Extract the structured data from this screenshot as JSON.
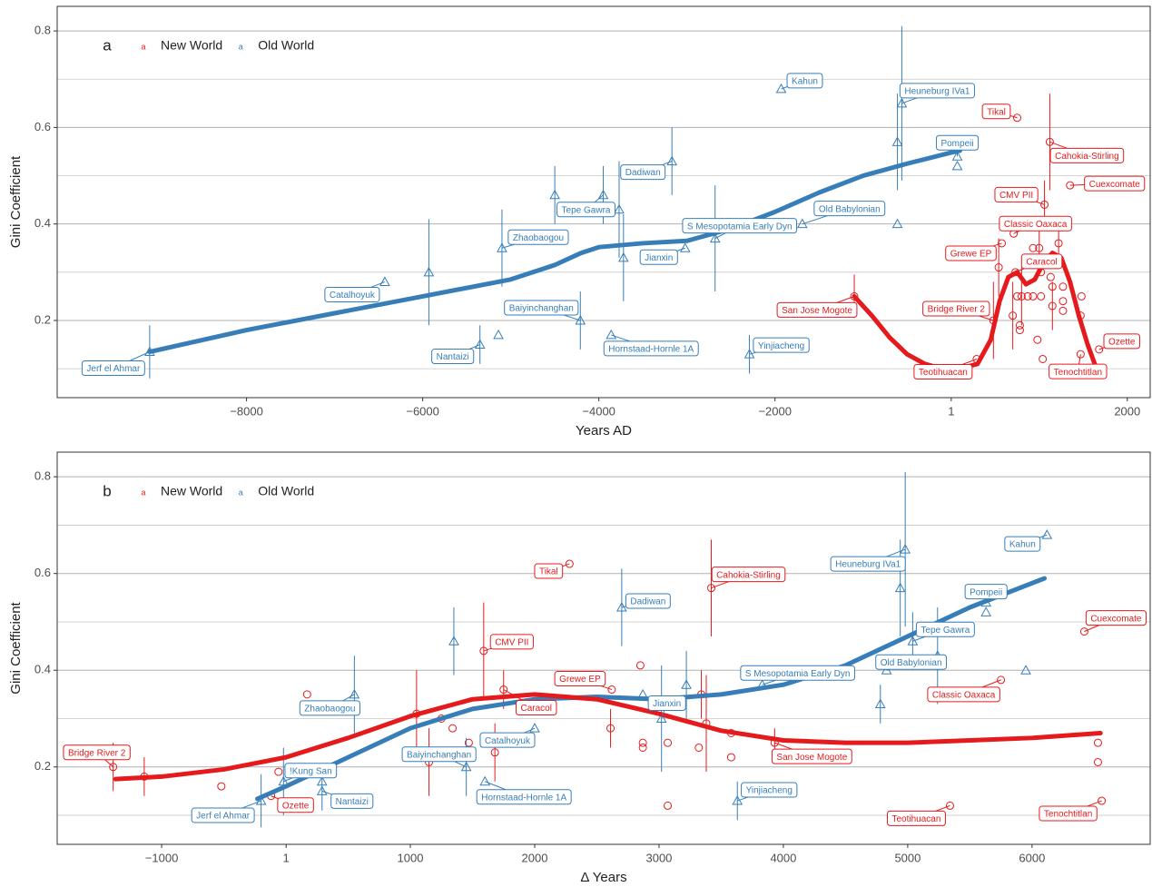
{
  "chart_data": [
    {
      "type": "scatter",
      "panel": "a",
      "legend_key": "a",
      "xlabel": "Years AD",
      "ylabel": "Gini Coefficient",
      "xlim": [
        -10150,
        2260
      ],
      "ylim": [
        0.04,
        0.851
      ],
      "xticks": [
        {
          "value": -8000,
          "label": "−8000"
        },
        {
          "value": -6000,
          "label": "−6000"
        },
        {
          "value": -4000,
          "label": "−4000"
        },
        {
          "value": -2000,
          "label": "−2000"
        },
        1,
        2000
      ],
      "yticks": [
        0.2,
        0.4,
        0.6,
        0.8
      ],
      "minor_yticks": [
        0.1,
        0.3,
        0.5,
        0.7
      ],
      "grid": true,
      "series": [
        {
          "name": "New World",
          "color": "#e41a1c",
          "marker": "circle",
          "x": [
            -1100,
            290,
            750,
            1120,
            1350,
            1060,
            710,
            575,
            730,
            480,
            1680,
            1470,
            540,
            700,
            750,
            800,
            780,
            780,
            930,
            1000,
            1020,
            980,
            1040,
            930,
            1130,
            1150,
            1150,
            1220,
            1270,
            1270,
            1270,
            1480,
            1470,
            1020,
            870
          ],
          "values": [
            0.25,
            0.12,
            0.62,
            0.57,
            0.48,
            0.44,
            0.38,
            0.36,
            0.3,
            0.2,
            0.14,
            0.13,
            0.31,
            0.21,
            0.25,
            0.25,
            0.19,
            0.18,
            0.35,
            0.35,
            0.25,
            0.16,
            0.12,
            0.25,
            0.29,
            0.27,
            0.23,
            0.36,
            0.27,
            0.24,
            0.22,
            0.25,
            0.21,
            0.3,
            0.25
          ],
          "errors": [
            0.045,
            null,
            null,
            0.1,
            null,
            0.05,
            null,
            null,
            null,
            0.08,
            null,
            null,
            0.06,
            0.07,
            null,
            0.06,
            null,
            null,
            null,
            0.04,
            null,
            null,
            null,
            null,
            null,
            null,
            0.05,
            0.04,
            null,
            null,
            null,
            null,
            null,
            null,
            null
          ],
          "labels": [
            "San Jose Mogote",
            "Teotihuacan",
            "Tikal",
            "Cahokia-Stirling",
            "Cuexcomate",
            "CMV PII",
            "Classic Oaxaca",
            "Grewe EP",
            "Caracol",
            "Bridge River 2",
            "Ozette",
            "Tenochtitlan",
            null,
            null,
            null,
            null,
            null,
            null,
            null,
            null,
            null,
            null,
            null,
            null,
            null,
            null,
            null,
            null,
            null,
            null,
            null,
            null,
            null,
            null,
            null
          ]
        },
        {
          "name": "Old World",
          "color": "#377eb8",
          "marker": "triangle",
          "x": [
            -9100,
            -6430,
            -5930,
            -5100,
            -5350,
            -5140,
            -4500,
            -3950,
            -3770,
            -3720,
            -4210,
            -3860,
            -3170,
            -3020,
            -2680,
            -2290,
            -1690,
            -1930,
            -560,
            -610,
            -610,
            70,
            70
          ],
          "values": [
            0.135,
            0.28,
            0.3,
            0.35,
            0.15,
            0.17,
            0.46,
            0.46,
            0.43,
            0.33,
            0.2,
            0.17,
            0.53,
            0.35,
            0.37,
            0.13,
            0.4,
            0.68,
            0.65,
            0.57,
            0.4,
            0.54,
            0.52
          ],
          "errors": [
            0.055,
            null,
            0.11,
            0.08,
            0.04,
            null,
            0.06,
            0.06,
            0.1,
            0.09,
            0.06,
            null,
            0.07,
            null,
            0.11,
            0.04,
            null,
            null,
            0.16,
            0.1,
            null,
            null,
            null
          ],
          "labels": [
            "Jerf el Ahmar",
            "Catalhoyuk",
            null,
            "Zhaobaogou",
            "Nantaizi",
            null,
            null,
            "Tepe Gawra",
            null,
            null,
            "Baiyinchanghan",
            "Hornstaad-Hornle 1A",
            "Dadiwan",
            "Jianxin",
            "S Mesopotamia Early Dyn",
            "Yinjiacheng",
            "Old Babylonian",
            "Kahun",
            "Heuneburg IVa1",
            null,
            null,
            "Pompeii",
            null
          ]
        }
      ],
      "trends": [
        {
          "color": "#377eb8",
          "x": [
            -9100,
            -8000,
            -7000,
            -6000,
            -5000,
            -4500,
            -4200,
            -4000,
            -3500,
            -3000,
            -2500,
            -2000,
            -1500,
            -1000,
            -500,
            0,
            100
          ],
          "values": [
            0.135,
            0.18,
            0.215,
            0.25,
            0.285,
            0.315,
            0.34,
            0.352,
            0.36,
            0.365,
            0.39,
            0.425,
            0.465,
            0.5,
            0.525,
            0.548,
            0.552
          ]
        },
        {
          "color": "#e41a1c",
          "x": [
            -1100,
            -900,
            -700,
            -500,
            -300,
            -100,
            100,
            300,
            450,
            550,
            650,
            750,
            850,
            950,
            1050,
            1150,
            1250,
            1350,
            1450,
            1550,
            1650
          ],
          "values": [
            0.25,
            0.21,
            0.165,
            0.13,
            0.11,
            0.1,
            0.1,
            0.11,
            0.16,
            0.24,
            0.29,
            0.3,
            0.275,
            0.285,
            0.32,
            0.34,
            0.33,
            0.28,
            0.21,
            0.15,
            0.1
          ]
        }
      ]
    },
    {
      "type": "scatter",
      "panel": "b",
      "legend_key": "a",
      "xlabel": "Δ Years",
      "ylabel": "Gini Coefficient",
      "xlim": [
        -1840,
        6950
      ],
      "ylim": [
        0.04,
        0.851
      ],
      "xticks": [
        {
          "value": -1000,
          "label": "−1000"
        },
        1,
        1000,
        2000,
        3000,
        4000,
        5000,
        6000
      ],
      "yticks": [
        0.2,
        0.4,
        0.6,
        0.8
      ],
      "minor_yticks": [
        0.1,
        0.3,
        0.5,
        0.7
      ],
      "grid": true,
      "series": [
        {
          "name": "New World",
          "color": "#e41a1c",
          "marker": "circle",
          "x": [
            -1390,
            -1140,
            -520,
            -120,
            -60,
            170,
            1050,
            1150,
            1250,
            1340,
            1470,
            2280,
            3420,
            1590,
            2620,
            1750,
            1680,
            5340,
            6420,
            5750,
            3930,
            6560,
            6530,
            6530,
            2610,
            2870,
            2870,
            3070,
            3070,
            3320,
            3340,
            3380,
            3580,
            3580,
            2850
          ],
          "values": [
            0.2,
            0.18,
            0.16,
            0.14,
            0.19,
            0.35,
            0.31,
            0.21,
            0.3,
            0.28,
            0.25,
            0.62,
            0.57,
            0.44,
            0.36,
            0.36,
            0.23,
            0.12,
            0.48,
            0.38,
            0.25,
            0.13,
            0.25,
            0.21,
            0.28,
            0.25,
            0.24,
            0.25,
            0.12,
            0.24,
            0.35,
            0.29,
            0.27,
            0.22,
            0.41
          ],
          "errors": [
            0.05,
            0.04,
            null,
            null,
            null,
            null,
            0.09,
            0.07,
            null,
            null,
            null,
            null,
            0.1,
            0.1,
            null,
            0.04,
            0.06,
            null,
            null,
            null,
            0.03,
            null,
            null,
            null,
            0.04,
            null,
            null,
            null,
            null,
            null,
            0.05,
            0.1,
            null,
            null,
            null
          ],
          "labels": [
            "Bridge River 2",
            null,
            null,
            "Ozette",
            null,
            null,
            null,
            null,
            null,
            null,
            null,
            "Tikal",
            "Cahokia-Stirling",
            "CMV PII",
            "Grewe EP",
            "Caracol",
            null,
            "Teotihuacan",
            "Cuexcomate",
            "Classic Oaxaca",
            "San Jose Mogote",
            "Tenochtitlan",
            null,
            null,
            null,
            null,
            null,
            null,
            null,
            null,
            null,
            null,
            null,
            null,
            null
          ]
        },
        {
          "name": "Old World",
          "color": "#377eb8",
          "marker": "triangle",
          "x": [
            -200,
            290,
            290,
            -20,
            550,
            2000,
            1450,
            1600,
            1350,
            2700,
            3020,
            3220,
            2870,
            3630,
            3830,
            4830,
            4780,
            5040,
            5240,
            4940,
            4980,
            5630,
            5630,
            6120,
            5950
          ],
          "values": [
            0.13,
            0.15,
            0.17,
            0.17,
            0.35,
            0.28,
            0.2,
            0.17,
            0.46,
            0.53,
            0.3,
            0.37,
            0.35,
            0.13,
            0.37,
            0.4,
            0.33,
            0.46,
            0.43,
            0.57,
            0.65,
            0.54,
            0.52,
            0.68,
            0.4
          ],
          "errors": [
            0.055,
            0.04,
            null,
            0.07,
            0.08,
            null,
            0.06,
            null,
            0.07,
            0.08,
            0.11,
            0.07,
            null,
            0.04,
            null,
            null,
            0.04,
            0.06,
            0.1,
            0.1,
            0.16,
            null,
            null,
            null,
            null
          ],
          "labels": [
            "Jerf el Ahmar",
            "Nantaizi",
            null,
            "!Kung San",
            "Zhaobaogou",
            "Catalhoyuk",
            "Baiyinchanghan",
            "Hornstaad-Hornle 1A",
            null,
            "Dadiwan",
            "Jianxin",
            null,
            null,
            "Yinjiacheng",
            "S Mesopotamia Early Dyn",
            "Old Babylonian",
            null,
            "Tepe Gawra",
            null,
            null,
            "Heuneburg IVa1",
            "Pompeii",
            null,
            "Kahun",
            null
          ]
        }
      ],
      "trends": [
        {
          "color": "#377eb8",
          "x": [
            -230,
            0,
            500,
            1000,
            1500,
            2000,
            2500,
            3000,
            3500,
            4000,
            4500,
            5000,
            5500,
            6100
          ],
          "values": [
            0.134,
            0.16,
            0.22,
            0.28,
            0.32,
            0.34,
            0.345,
            0.34,
            0.35,
            0.37,
            0.41,
            0.47,
            0.53,
            0.59
          ]
        },
        {
          "color": "#e41a1c",
          "x": [
            -1370,
            -1000,
            -500,
            0,
            500,
            1000,
            1500,
            2000,
            2500,
            3000,
            3500,
            4000,
            4500,
            5000,
            5500,
            6000,
            6550
          ],
          "values": [
            0.175,
            0.18,
            0.195,
            0.22,
            0.26,
            0.305,
            0.34,
            0.35,
            0.34,
            0.31,
            0.275,
            0.255,
            0.25,
            0.25,
            0.255,
            0.26,
            0.27
          ]
        }
      ]
    }
  ]
}
